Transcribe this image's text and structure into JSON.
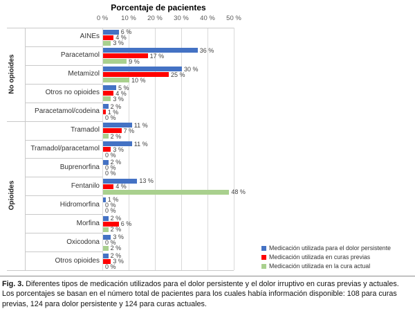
{
  "chart_data": {
    "type": "bar",
    "orientation": "horizontal",
    "title": "Porcentaje de pacientes",
    "axis_ticks": [
      "0 %",
      "10 %",
      "20 %",
      "30 %",
      "40 %",
      "50 %"
    ],
    "xlim": [
      0,
      50
    ],
    "grid": true,
    "legend_position": "bottom-right",
    "value_label_suffix": " %",
    "groups": [
      {
        "label": "No opioides",
        "categories": [
          "AINEs",
          "Paracetamol",
          "Metamizol",
          "Otros no opioides",
          "Paracetamol/codeina"
        ]
      },
      {
        "label": "Opioides",
        "categories": [
          "Tramadol",
          "Tramadol/paracetamol",
          "Buprenorfina",
          "Fentanilo",
          "Hidromorfina",
          "Morfina",
          "Oxicodona",
          "Otros opioides"
        ]
      }
    ],
    "series": [
      {
        "name": "Medicación utilizada para el dolor persistente",
        "color": "#4472C4",
        "values": [
          6,
          36,
          30,
          5,
          2,
          11,
          11,
          2,
          13,
          1,
          2,
          3,
          2
        ]
      },
      {
        "name": "Medicación utilizada en curas previas",
        "color": "#FF0000",
        "values": [
          4,
          17,
          25,
          4,
          1,
          7,
          3,
          0,
          4,
          0,
          6,
          0,
          3
        ]
      },
      {
        "name": "Medicación utilizada en la cura actual",
        "color": "#A9D08E",
        "values": [
          3,
          9,
          10,
          3,
          0,
          2,
          0,
          0,
          48,
          0,
          2,
          2,
          0
        ]
      }
    ]
  },
  "colors": {
    "gridline": "#d9d9d9",
    "axis_line": "#c9c9c9",
    "background": "#ffffff"
  },
  "caption": {
    "label": "Fig. 3.",
    "text": "Diferentes tipos de medicación utilizados para el dolor persistente y el dolor irruptivo en curas previas y actuales. Los porcentajes se basan en el número total de pacientes para los cuales había información disponible: 108 para curas previas, 124 para dolor persistente y 124 para curas actuales."
  }
}
